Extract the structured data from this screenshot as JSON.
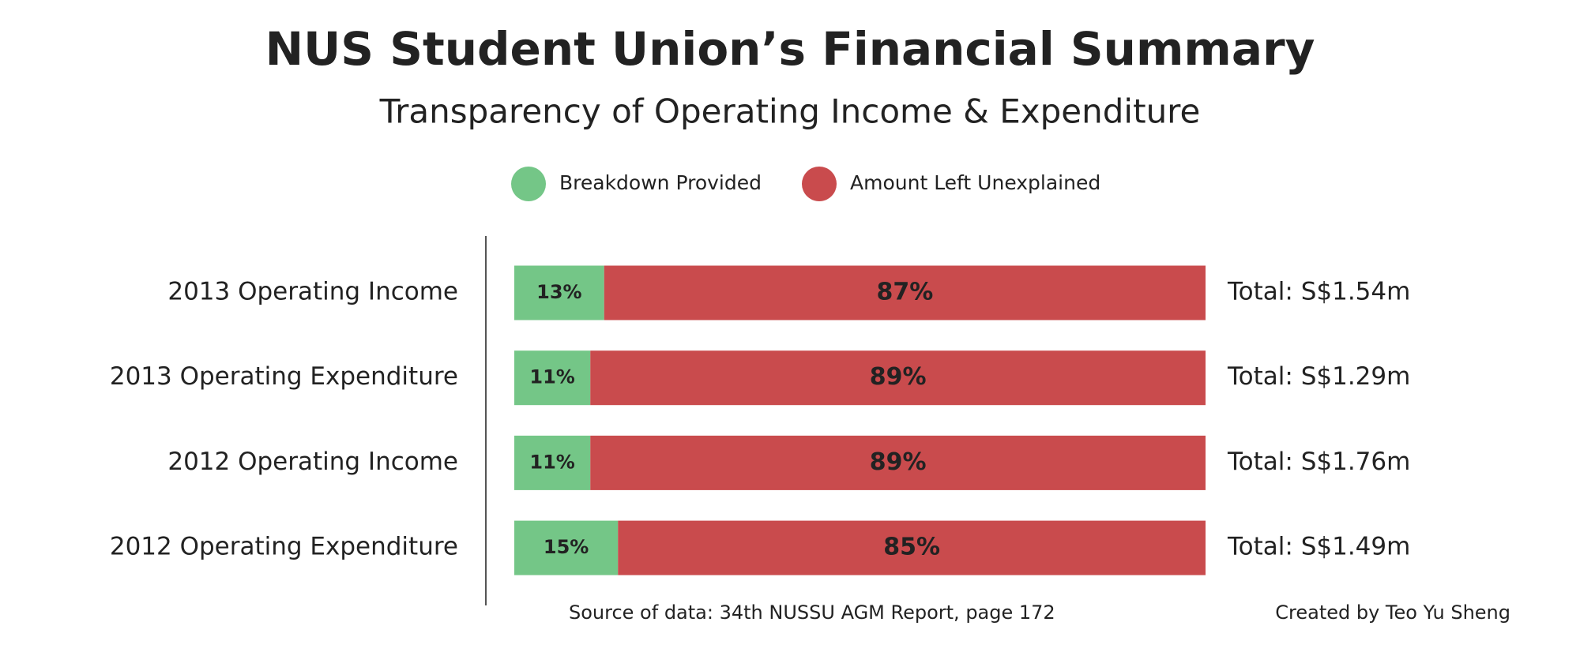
{
  "chart_data": {
    "type": "stacked-bar-horizontal",
    "title": "NUS Student Union’s Financial Summary",
    "subtitle": "Transparency of Operating Income & Expenditure",
    "categories": [
      "2013 Operating Income",
      "2013 Operating Expenditure",
      "2012 Operating Income",
      "2012 Operating Expenditure"
    ],
    "series": [
      {
        "name": "Breakdown Provided",
        "color": "#74c687",
        "values": [
          13,
          11,
          11,
          15
        ],
        "value_labels": [
          "13%",
          "11%",
          "11%",
          "15%"
        ]
      },
      {
        "name": "Amount Left Unexplained",
        "color": "#c94b4d",
        "values": [
          87,
          89,
          89,
          85
        ],
        "value_labels": [
          "87%",
          "89%",
          "89%",
          "85%"
        ]
      }
    ],
    "totals": [
      "Total: S$1.54m",
      "Total: S$1.29m",
      "Total: S$1.76m",
      "Total: S$1.49m"
    ],
    "xlim": [
      0,
      100
    ],
    "source": "Source of data: 34th NUSSU AGM Report, page 172",
    "credit": "Created by Teo Yu Sheng"
  }
}
